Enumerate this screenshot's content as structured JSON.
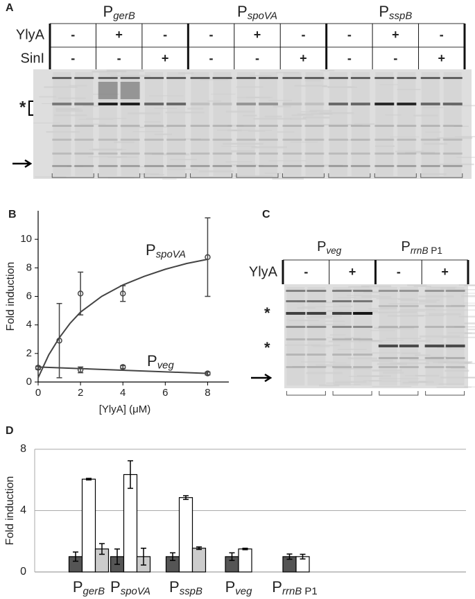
{
  "panel_a": {
    "label": "A",
    "promoters": [
      {
        "main": "P",
        "sub": "gerB"
      },
      {
        "main": "P",
        "sub": "spoVA"
      },
      {
        "main": "P",
        "sub": "sspB"
      }
    ],
    "rows": [
      {
        "name": "YlyA",
        "signs": [
          "-",
          "+",
          "-",
          "-",
          "+",
          "-",
          "-",
          "+",
          "-"
        ]
      },
      {
        "name": "SinI",
        "signs": [
          "-",
          "-",
          "+",
          "-",
          "-",
          "+",
          "-",
          "-",
          "+"
        ]
      }
    ],
    "marker": "*"
  },
  "panel_c": {
    "label": "C",
    "promoters": [
      {
        "main": "P",
        "sub": "veg"
      },
      {
        "main": "P",
        "sub": "rrnB",
        "suffix": " P1"
      }
    ],
    "rows": [
      {
        "name": "YlyA",
        "signs": [
          "-",
          "+",
          "-",
          "+"
        ]
      }
    ],
    "markers": [
      "*",
      "*"
    ]
  },
  "chart_data": [
    {
      "type": "scatter",
      "label": "B",
      "ylabel": "Fold induction",
      "xlabel": "[YlyA] (μM)",
      "xlim": [
        0,
        9
      ],
      "ylim": [
        0,
        12
      ],
      "xticks": [
        0,
        2,
        4,
        6,
        8
      ],
      "yticks": [
        0,
        2,
        4,
        6,
        8,
        10
      ],
      "series": [
        {
          "label": {
            "main": "P",
            "sub": "spoVA"
          },
          "color": "#444444",
          "x": [
            0,
            1,
            2,
            4,
            8
          ],
          "values": [
            1,
            2.9,
            6.2,
            6.2,
            8.75
          ],
          "errors": [
            0.1,
            2.6,
            1.5,
            0.55,
            2.75
          ],
          "fit_x": [
            0,
            0.5,
            1,
            1.5,
            2,
            3,
            4,
            5,
            6,
            7,
            8
          ],
          "fit_values": [
            0.3,
            1.9,
            3.1,
            4.1,
            4.9,
            6.0,
            6.8,
            7.4,
            7.9,
            8.3,
            8.6
          ]
        },
        {
          "label": {
            "main": "P",
            "sub": "veg"
          },
          "color": "#444444",
          "x": [
            0,
            2,
            4,
            8
          ],
          "values": [
            1,
            0.85,
            1.05,
            0.6
          ],
          "errors": [
            0.1,
            0.2,
            0.1,
            0.1
          ],
          "fit_x": [
            0,
            8
          ],
          "fit_values": [
            1.05,
            0.6
          ]
        }
      ]
    },
    {
      "type": "bar",
      "label": "D",
      "ylabel": "Fold induction",
      "categories": [
        {
          "main": "P",
          "sub": "gerB"
        },
        {
          "main": "P",
          "sub": "spoVA"
        },
        {
          "main": "P",
          "sub": "sspB"
        },
        {
          "main": "P",
          "sub": "veg"
        },
        {
          "main": "P",
          "sub": "rrnB",
          "suffix": " P1"
        }
      ],
      "ylim": [
        0,
        8
      ],
      "yticks": [
        0,
        4,
        8
      ],
      "grid": true,
      "series": [
        {
          "color": "#555555",
          "values": [
            1,
            1,
            1,
            1,
            1
          ],
          "errors": [
            0.3,
            0.5,
            0.25,
            0.25,
            0.17
          ]
        },
        {
          "color": "#ffffff",
          "values": [
            6.05,
            6.35,
            4.85,
            1.5,
            1.0
          ],
          "errors": [
            0.05,
            0.9,
            0.12,
            0.05,
            0.15
          ]
        },
        {
          "color": "#cccccc",
          "values": [
            1.5,
            1.0,
            1.55,
            null,
            null
          ],
          "errors": [
            0.35,
            0.55,
            0.08,
            null,
            null
          ]
        }
      ]
    }
  ]
}
